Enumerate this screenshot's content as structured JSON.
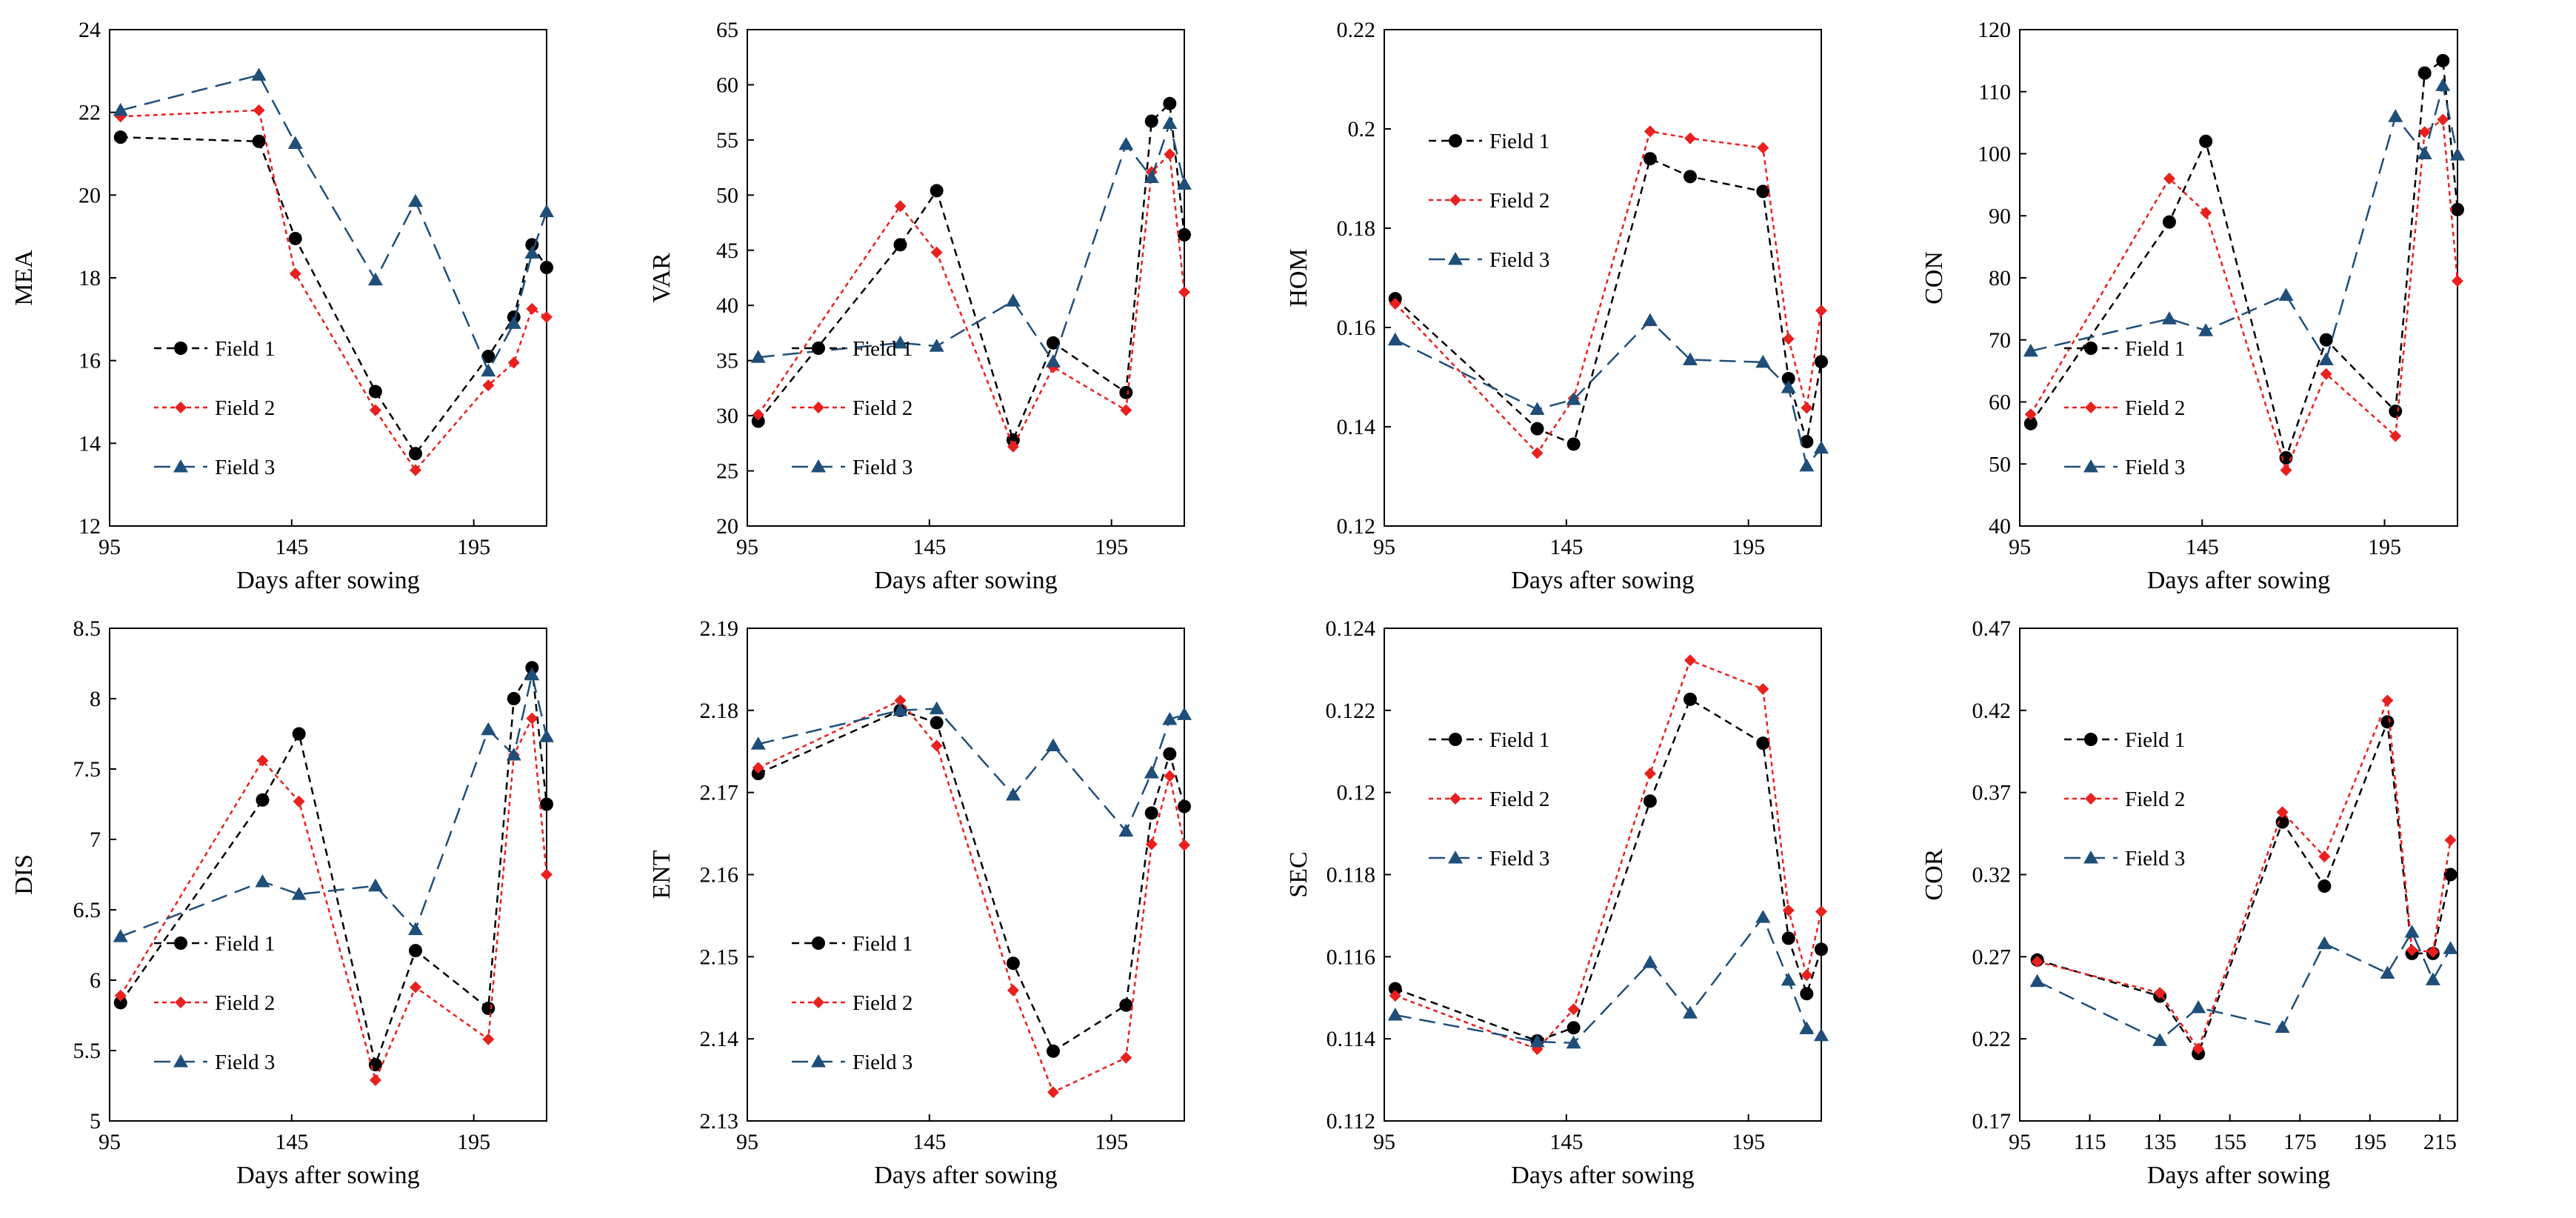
{
  "colors": {
    "Field 1": "#000000",
    "Field 2": "#e8211f",
    "Field 3": "#1f4e79"
  },
  "chart_data": [
    {
      "type": "line",
      "ylabel": "MEA",
      "xlabel": "Days after sowing",
      "xlim": [
        95,
        215
      ],
      "xticks": [
        95,
        145,
        195
      ],
      "xtick_labels": [
        "95",
        "145",
        "195"
      ],
      "ylim": [
        12,
        24
      ],
      "yticks": [
        12,
        14,
        16,
        18,
        20,
        22,
        24
      ],
      "ytick_labels": [
        "12",
        "14",
        "16",
        "18",
        "20",
        "22",
        "24"
      ],
      "legend": "lower-left",
      "series": [
        {
          "name": "Field 1",
          "x": [
            98,
            136,
            146,
            168,
            179,
            199,
            206,
            211,
            215
          ],
          "y": [
            21.4,
            21.3,
            18.95,
            15.25,
            13.75,
            16.1,
            17.05,
            18.8,
            18.25
          ]
        },
        {
          "name": "Field 2",
          "x": [
            98,
            136,
            146,
            168,
            179,
            199,
            206,
            211,
            215
          ],
          "y": [
            21.9,
            22.05,
            18.1,
            14.8,
            13.35,
            15.4,
            15.95,
            17.25,
            17.05
          ]
        },
        {
          "name": "Field 3",
          "x": [
            98,
            136,
            146,
            168,
            179,
            199,
            206,
            211,
            215
          ],
          "y": [
            22.05,
            22.9,
            21.25,
            17.95,
            19.85,
            15.75,
            16.9,
            18.6,
            19.6
          ]
        }
      ]
    },
    {
      "type": "line",
      "ylabel": "VAR",
      "xlabel": "Days after sowing",
      "xlim": [
        95,
        215
      ],
      "xticks": [
        95,
        145,
        195
      ],
      "xtick_labels": [
        "95",
        "145",
        "195"
      ],
      "ylim": [
        20,
        65
      ],
      "yticks": [
        20,
        25,
        30,
        35,
        40,
        45,
        50,
        55,
        60,
        65
      ],
      "ytick_labels": [
        "20",
        "25",
        "30",
        "35",
        "40",
        "45",
        "50",
        "55",
        "60",
        "65"
      ],
      "legend": "lower-left",
      "series": [
        {
          "name": "Field 1",
          "x": [
            98,
            137,
            147,
            168,
            179,
            199,
            206,
            211,
            215
          ],
          "y": [
            29.5,
            45.5,
            50.4,
            27.8,
            36.6,
            32.1,
            56.7,
            58.3,
            46.4
          ]
        },
        {
          "name": "Field 2",
          "x": [
            98,
            137,
            147,
            168,
            179,
            199,
            206,
            211,
            215
          ],
          "y": [
            30.1,
            49.0,
            44.8,
            27.2,
            34.4,
            30.5,
            52.1,
            53.7,
            41.2
          ]
        },
        {
          "name": "Field 3",
          "x": [
            98,
            137,
            147,
            168,
            179,
            199,
            206,
            211,
            215
          ],
          "y": [
            35.3,
            36.6,
            36.3,
            40.4,
            34.9,
            54.6,
            51.6,
            56.5,
            51.0
          ]
        }
      ]
    },
    {
      "type": "line",
      "ylabel": "HOM",
      "xlabel": "Days after sowing",
      "xlim": [
        95,
        215
      ],
      "xticks": [
        95,
        145,
        195
      ],
      "xtick_labels": [
        "95",
        "145",
        "195"
      ],
      "ylim": [
        0.12,
        0.22
      ],
      "yticks": [
        0.12,
        0.14,
        0.16,
        0.18,
        0.2,
        0.22
      ],
      "ytick_labels": [
        "0.12",
        "0.14",
        "0.16",
        "0.18",
        "0.2",
        "0.22"
      ],
      "legend": "upper-left",
      "series": [
        {
          "name": "Field 1",
          "x": [
            98,
            137,
            147,
            168,
            179,
            199,
            206,
            211,
            215
          ],
          "y": [
            0.1658,
            0.1396,
            0.1365,
            0.194,
            0.1904,
            0.1874,
            0.1497,
            0.137,
            0.1531
          ]
        },
        {
          "name": "Field 2",
          "x": [
            98,
            137,
            147,
            168,
            179,
            199,
            206,
            211,
            215
          ],
          "y": [
            0.1648,
            0.1347,
            0.1457,
            0.1995,
            0.1981,
            0.1962,
            0.1577,
            0.1438,
            0.1634
          ]
        },
        {
          "name": "Field 3",
          "x": [
            98,
            137,
            147,
            168,
            179,
            199,
            206,
            211,
            215
          ],
          "y": [
            0.1575,
            0.1435,
            0.1455,
            0.1614,
            0.1535,
            0.153,
            0.1479,
            0.1321,
            0.1357
          ]
        }
      ]
    },
    {
      "type": "line",
      "ylabel": "CON",
      "xlabel": "Days after sowing",
      "xlim": [
        95,
        215
      ],
      "xticks": [
        95,
        145,
        195
      ],
      "xtick_labels": [
        "95",
        "145",
        "195"
      ],
      "ylim": [
        40,
        120
      ],
      "yticks": [
        40,
        50,
        60,
        70,
        80,
        90,
        100,
        110,
        120
      ],
      "ytick_labels": [
        "40",
        "50",
        "60",
        "70",
        "80",
        "90",
        "100",
        "110",
        "120"
      ],
      "legend": "lower-left",
      "series": [
        {
          "name": "Field 1",
          "x": [
            98,
            136,
            146,
            168,
            179,
            198,
            206,
            211,
            215
          ],
          "y": [
            56.5,
            89.0,
            102.0,
            51.0,
            70.0,
            58.5,
            113.0,
            115.0,
            91.0
          ]
        },
        {
          "name": "Field 2",
          "x": [
            98,
            136,
            146,
            168,
            179,
            198,
            206,
            211,
            215
          ],
          "y": [
            58.0,
            96.0,
            90.5,
            49.0,
            64.5,
            54.5,
            103.5,
            105.5,
            79.5
          ]
        },
        {
          "name": "Field 3",
          "x": [
            98,
            136,
            146,
            168,
            179,
            198,
            206,
            211,
            215
          ],
          "y": [
            68.2,
            73.4,
            71.5,
            77.2,
            66.8,
            106.0,
            100.0,
            111.0,
            99.8
          ]
        }
      ]
    },
    {
      "type": "line",
      "ylabel": "DIS",
      "xlabel": "Days after sowing",
      "xlim": [
        95,
        215
      ],
      "xticks": [
        95,
        145,
        195
      ],
      "xtick_labels": [
        "95",
        "145",
        "195"
      ],
      "ylim": [
        5,
        8.5
      ],
      "yticks": [
        5,
        5.5,
        6,
        6.5,
        7,
        7.5,
        8,
        8.5
      ],
      "ytick_labels": [
        "5",
        "5.5",
        "6",
        "6.5",
        "7",
        "7.5",
        "8",
        "8.5"
      ],
      "legend": "lower-left",
      "series": [
        {
          "name": "Field 1",
          "x": [
            98,
            137,
            147,
            168,
            179,
            199,
            206,
            211,
            215
          ],
          "y": [
            5.84,
            7.28,
            7.75,
            5.4,
            6.21,
            5.8,
            8.0,
            8.22,
            7.25
          ]
        },
        {
          "name": "Field 2",
          "x": [
            98,
            137,
            147,
            168,
            179,
            199,
            206,
            211,
            215
          ],
          "y": [
            5.89,
            7.56,
            7.27,
            5.29,
            5.95,
            5.58,
            7.6,
            7.86,
            6.75
          ]
        },
        {
          "name": "Field 3",
          "x": [
            98,
            137,
            147,
            168,
            179,
            199,
            206,
            211,
            215
          ],
          "y": [
            6.31,
            6.7,
            6.61,
            6.67,
            6.36,
            7.78,
            7.6,
            8.17,
            7.73
          ]
        }
      ]
    },
    {
      "type": "line",
      "ylabel": "ENT",
      "xlabel": "Days after sowing",
      "xlim": [
        95,
        215
      ],
      "xticks": [
        95,
        145,
        195
      ],
      "xtick_labels": [
        "95",
        "145",
        "195"
      ],
      "ylim": [
        2.13,
        2.19
      ],
      "yticks": [
        2.13,
        2.14,
        2.15,
        2.16,
        2.17,
        2.18,
        2.19
      ],
      "ytick_labels": [
        "2.13",
        "2.14",
        "2.15",
        "2.16",
        "2.17",
        "2.18",
        "2.19"
      ],
      "legend": "lower-left",
      "series": [
        {
          "name": "Field 1",
          "x": [
            98,
            137,
            147,
            168,
            179,
            199,
            206,
            211,
            215
          ],
          "y": [
            2.1723,
            2.18,
            2.1785,
            2.1492,
            2.1385,
            2.1441,
            2.1675,
            2.1747,
            2.1683
          ]
        },
        {
          "name": "Field 2",
          "x": [
            98,
            137,
            147,
            168,
            179,
            199,
            206,
            211,
            215
          ],
          "y": [
            2.173,
            2.1812,
            2.1757,
            2.1459,
            2.1335,
            2.1377,
            2.1637,
            2.172,
            2.1636
          ]
        },
        {
          "name": "Field 3",
          "x": [
            98,
            137,
            147,
            168,
            179,
            199,
            206,
            211,
            215
          ],
          "y": [
            2.1759,
            2.18,
            2.1802,
            2.1697,
            2.1757,
            2.1653,
            2.1724,
            2.1789,
            2.1795
          ]
        }
      ]
    },
    {
      "type": "line",
      "ylabel": "SEC",
      "xlabel": "Days after sowing",
      "xlim": [
        95,
        215
      ],
      "xticks": [
        95,
        145,
        195
      ],
      "xtick_labels": [
        "95",
        "145",
        "195"
      ],
      "ylim": [
        0.112,
        0.124
      ],
      "yticks": [
        0.112,
        0.114,
        0.116,
        0.118,
        0.12,
        0.122,
        0.124
      ],
      "ytick_labels": [
        "0.112",
        "0.114",
        "0.116",
        "0.118",
        "0.12",
        "0.122",
        "0.124"
      ],
      "legend": "upper-left",
      "series": [
        {
          "name": "Field 1",
          "x": [
            98,
            137,
            147,
            168,
            179,
            199,
            206,
            211,
            215
          ],
          "y": [
            0.11522,
            0.11395,
            0.11427,
            0.11979,
            0.12227,
            0.1212,
            0.11645,
            0.1151,
            0.11618
          ]
        },
        {
          "name": "Field 2",
          "x": [
            98,
            137,
            147,
            168,
            179,
            199,
            206,
            211,
            215
          ],
          "y": [
            0.11505,
            0.11375,
            0.11472,
            0.12046,
            0.12322,
            0.12252,
            0.11713,
            0.11555,
            0.1171
          ]
        },
        {
          "name": "Field 3",
          "x": [
            98,
            137,
            147,
            168,
            179,
            199,
            206,
            211,
            215
          ],
          "y": [
            0.11458,
            0.11393,
            0.1139,
            0.11586,
            0.11463,
            0.11696,
            0.11543,
            0.11425,
            0.11408
          ]
        }
      ]
    },
    {
      "type": "line",
      "ylabel": "COR",
      "xlabel": "Days after sowing",
      "xlim": [
        95,
        220
      ],
      "xticks": [
        95,
        115,
        135,
        155,
        175,
        195,
        215
      ],
      "xtick_labels": [
        "95",
        "115",
        "135",
        "155",
        "175",
        "195",
        "215"
      ],
      "ylim": [
        0.17,
        0.47
      ],
      "yticks": [
        0.17,
        0.22,
        0.27,
        0.32,
        0.37,
        0.42,
        0.47
      ],
      "ytick_labels": [
        "0.17",
        "0.22",
        "0.27",
        "0.32",
        "0.37",
        "0.42",
        "0.47"
      ],
      "legend": "upper-left",
      "series": [
        {
          "name": "Field 1",
          "x": [
            100,
            135,
            146,
            170,
            182,
            200,
            207,
            213,
            218
          ],
          "y": [
            0.268,
            0.246,
            0.211,
            0.352,
            0.313,
            0.413,
            0.272,
            0.272,
            0.32
          ]
        },
        {
          "name": "Field 2",
          "x": [
            100,
            135,
            146,
            170,
            182,
            200,
            207,
            213,
            218
          ],
          "y": [
            0.267,
            0.248,
            0.214,
            0.358,
            0.331,
            0.426,
            0.274,
            0.273,
            0.341
          ]
        },
        {
          "name": "Field 3",
          "x": [
            100,
            135,
            146,
            170,
            182,
            200,
            207,
            213,
            218
          ],
          "y": [
            0.255,
            0.219,
            0.239,
            0.227,
            0.278,
            0.26,
            0.285,
            0.256,
            0.275
          ]
        }
      ]
    }
  ]
}
